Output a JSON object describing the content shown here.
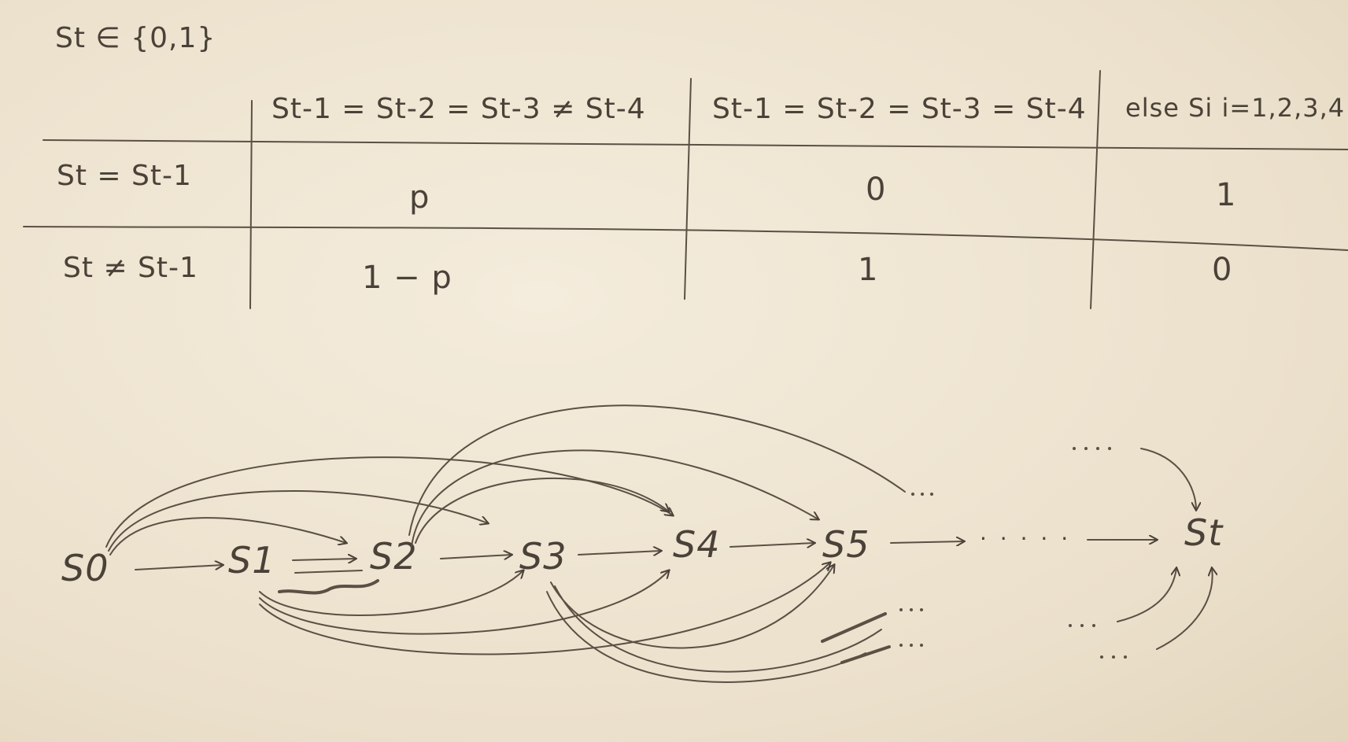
{
  "state_space": "St ∈ {0,1}",
  "table": {
    "columns": [
      "St-1 = St-2 = St-3 ≠ St-4",
      "St-1 = St-2 = St-3 = St-4",
      "else Si  i=1,2,3,4"
    ],
    "rows": [
      {
        "label": "St = St-1",
        "cells": [
          "p",
          "0",
          "1"
        ]
      },
      {
        "label": "St ≠ St-1",
        "cells": [
          "1 − p",
          "1",
          "0"
        ]
      }
    ]
  },
  "graph": {
    "nodes": [
      "S0",
      "S1",
      "S2",
      "S3",
      "S4",
      "S5",
      "St"
    ],
    "ellipsis": "· · · · ·"
  }
}
